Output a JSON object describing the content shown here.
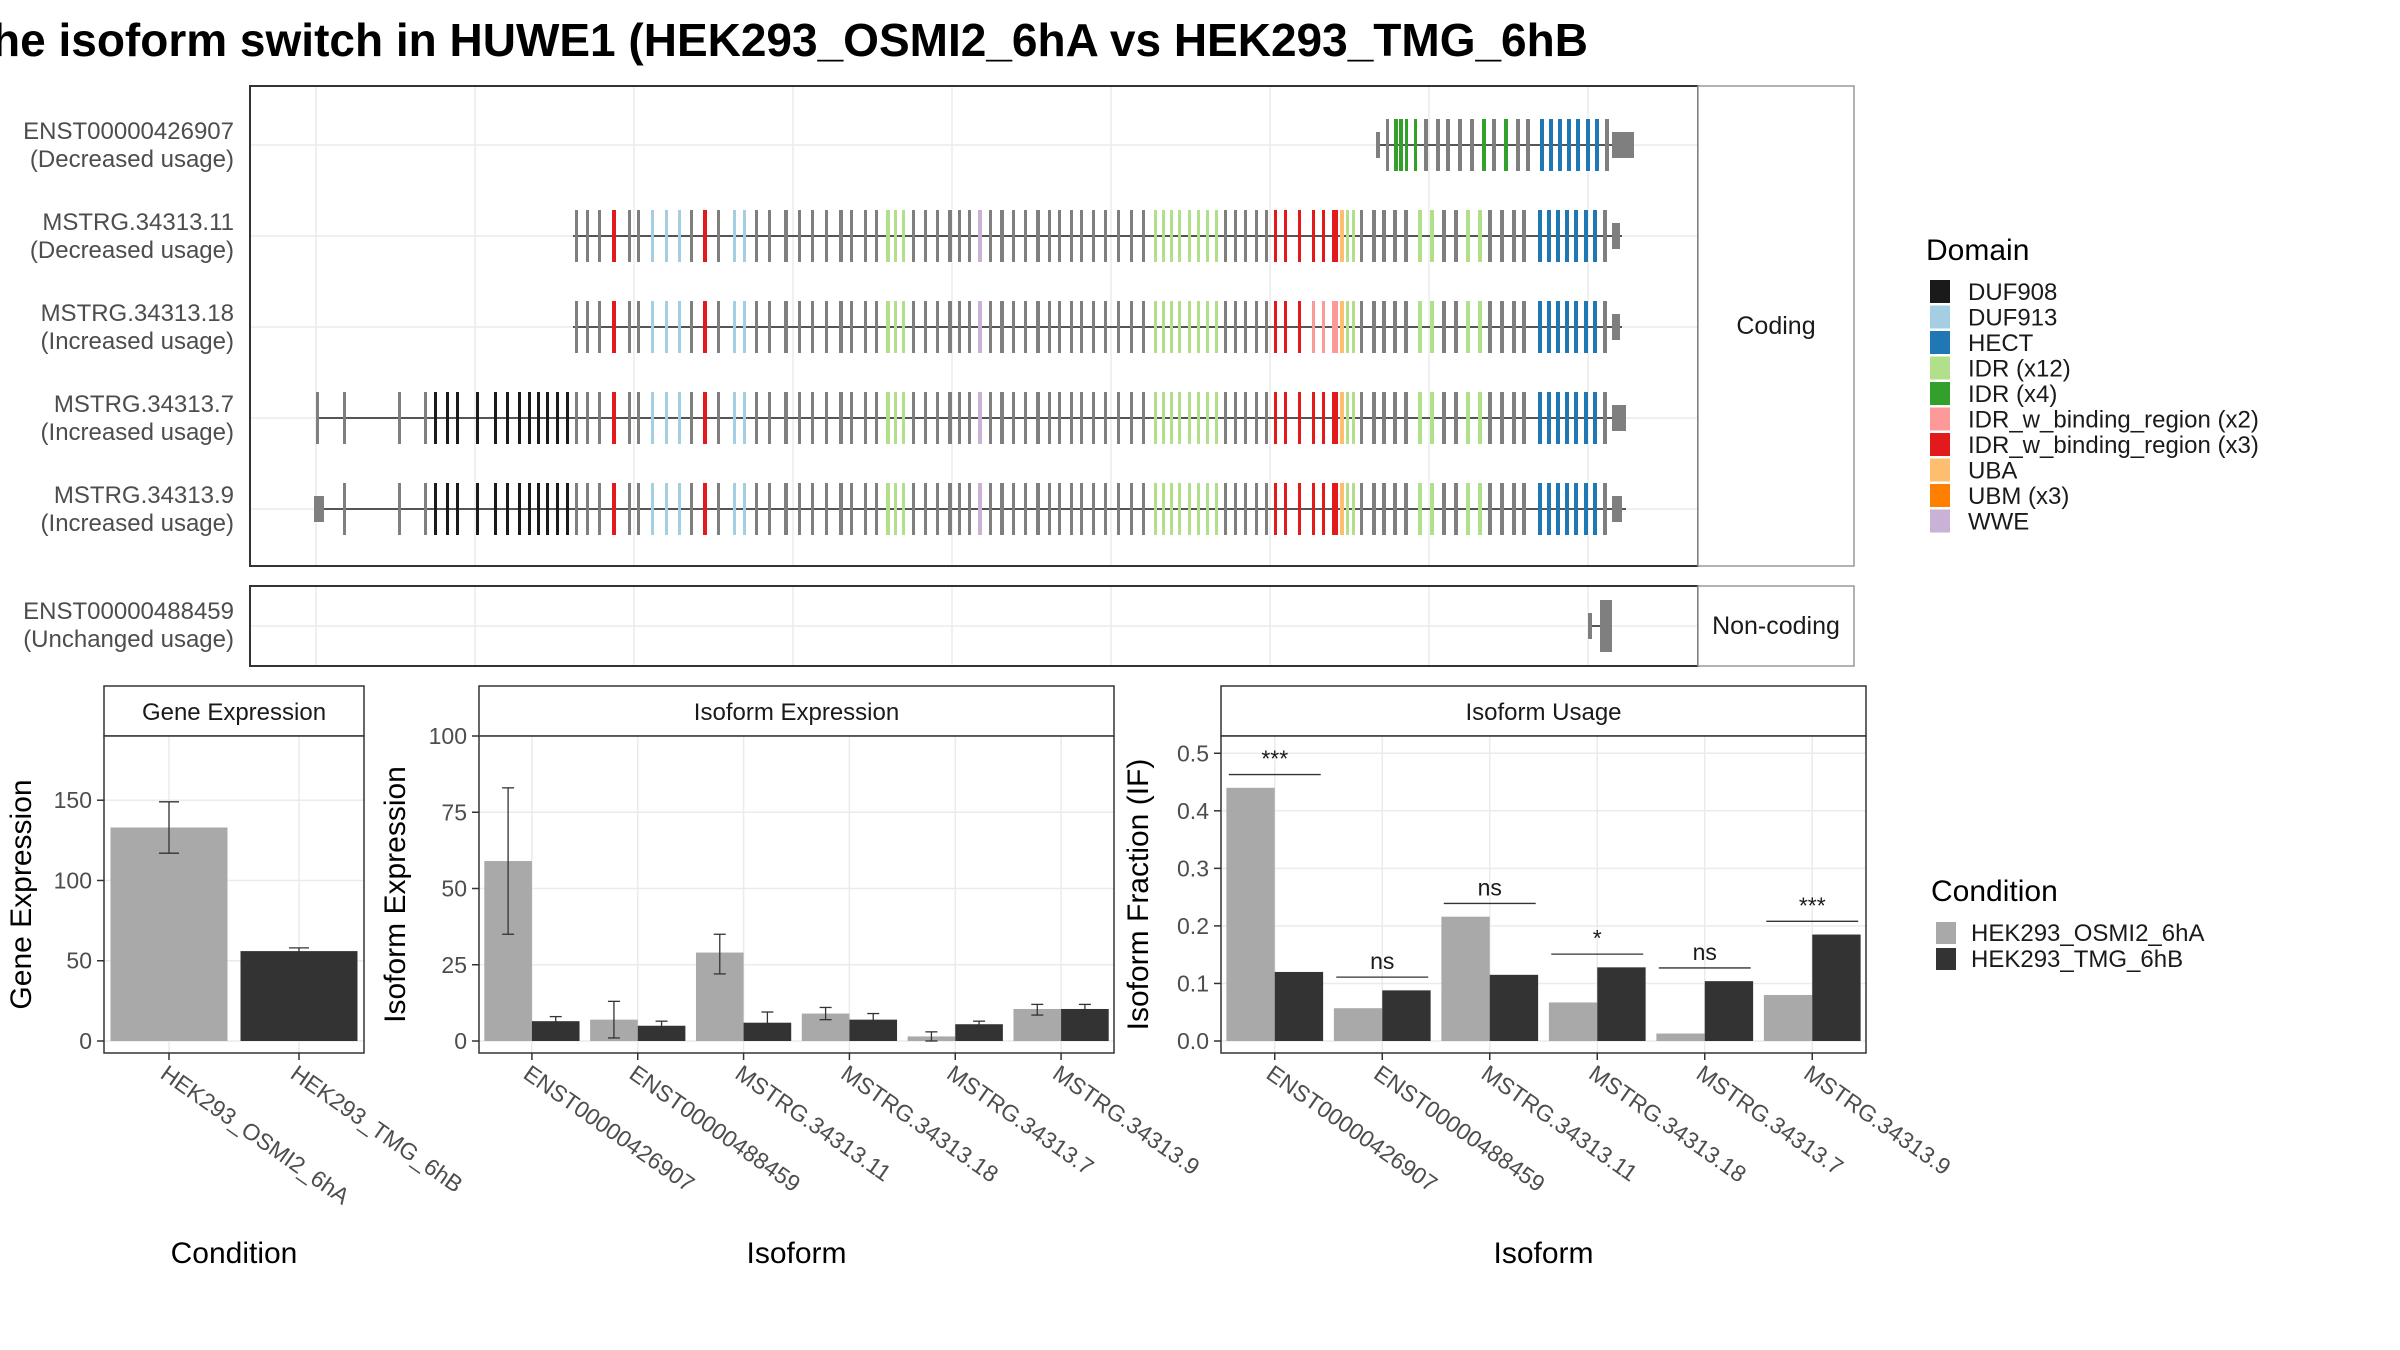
{
  "title": "he isoform switch in HUWE1 (HEK293_OSMI2_6hA vs HEK293_TMG_6hB",
  "colors": {
    "panel_border": "#333333",
    "strip_border": "#999999",
    "grid": "#ebebeb",
    "intron": "#555555",
    "exon": "#7f7f7f",
    "cond_a": "#a9a9a9",
    "cond_b": "#333333"
  },
  "structure": {
    "facets": [
      "Coding",
      "Non-coding"
    ],
    "transcripts": [
      {
        "id": "ENST00000426907",
        "usage": "(Decreased usage)",
        "facet": "Coding"
      },
      {
        "id": "MSTRG.34313.11",
        "usage": "(Decreased usage)",
        "facet": "Coding"
      },
      {
        "id": "MSTRG.34313.18",
        "usage": "(Increased usage)",
        "facet": "Coding"
      },
      {
        "id": "MSTRG.34313.7",
        "usage": "(Increased usage)",
        "facet": "Coding"
      },
      {
        "id": "MSTRG.34313.9",
        "usage": "(Increased usage)",
        "facet": "Coding"
      },
      {
        "id": "ENST00000488459",
        "usage": "(Unchanged usage)",
        "facet": "Non-coding"
      }
    ],
    "domain_legend_title": "Domain",
    "domains": [
      {
        "name": "DUF908",
        "color": "#1a1a1a"
      },
      {
        "name": "DUF913",
        "color": "#a6cee3"
      },
      {
        "name": "HECT",
        "color": "#1f78b4"
      },
      {
        "name": "IDR (x12)",
        "color": "#b2df8a"
      },
      {
        "name": "IDR (x4)",
        "color": "#33a02c"
      },
      {
        "name": "IDR_w_binding_region (x2)",
        "color": "#fb9a99"
      },
      {
        "name": "IDR_w_binding_region (x3)",
        "color": "#e31a1c"
      },
      {
        "name": "UBA",
        "color": "#fdbf6f"
      },
      {
        "name": "UBM (x3)",
        "color": "#ff7f00"
      },
      {
        "name": "WWE",
        "color": "#cab2d6"
      }
    ]
  },
  "condition_legend": {
    "title": "Condition",
    "items": [
      {
        "name": "HEK293_OSMI2_6hA",
        "color": "#a9a9a9"
      },
      {
        "name": "HEK293_TMG_6hB",
        "color": "#333333"
      }
    ]
  },
  "chart_data": [
    {
      "type": "bar",
      "title": "Gene Expression",
      "xlabel": "Condition",
      "ylabel": "Gene Expression",
      "ylim": [
        0,
        190
      ],
      "yticks": [
        0,
        50,
        100,
        150
      ],
      "categories": [
        "HEK293_OSMI2_6hA",
        "HEK293_TMG_6hB"
      ],
      "values": [
        133,
        56
      ],
      "errors": [
        [
          117,
          149
        ],
        [
          54,
          58
        ]
      ],
      "bar_colors": [
        "#a9a9a9",
        "#333333"
      ]
    },
    {
      "type": "bar",
      "title": "Isoform Expression",
      "xlabel": "Isoform",
      "ylabel": "Isoform Expression",
      "ylim": [
        0,
        100
      ],
      "yticks": [
        0,
        25,
        50,
        75,
        100
      ],
      "categories": [
        "ENST00000426907",
        "ENST00000488459",
        "MSTRG.34313.11",
        "MSTRG.34313.18",
        "MSTRG.34313.7",
        "MSTRG.34313.9"
      ],
      "series": [
        {
          "name": "HEK293_OSMI2_6hA",
          "values": [
            59,
            7,
            29,
            9,
            1.5,
            10.5
          ],
          "errors": [
            [
              35,
              83
            ],
            [
              1,
              13
            ],
            [
              22,
              35
            ],
            [
              7,
              11
            ],
            [
              0,
              3
            ],
            [
              8.5,
              12
            ]
          ]
        },
        {
          "name": "HEK293_TMG_6hB",
          "values": [
            6.5,
            5,
            6,
            7,
            5.5,
            10.5
          ],
          "errors": [
            [
              5,
              8
            ],
            [
              3.5,
              6.5
            ],
            [
              3,
              9.5
            ],
            [
              5,
              9
            ],
            [
              4.5,
              6.5
            ],
            [
              8.5,
              12
            ]
          ]
        }
      ]
    },
    {
      "type": "bar",
      "title": "Isoform Usage",
      "xlabel": "Isoform",
      "ylabel": "Isoform Fraction (IF)",
      "ylim": [
        0,
        0.53
      ],
      "yticks": [
        "0.0",
        "0.1",
        "0.2",
        "0.3",
        "0.4",
        "0.5"
      ],
      "categories": [
        "ENST00000426907",
        "ENST00000488459",
        "MSTRG.34313.11",
        "MSTRG.34313.18",
        "MSTRG.34313.7",
        "MSTRG.34313.9"
      ],
      "series": [
        {
          "name": "HEK293_OSMI2_6hA",
          "values": [
            0.44,
            0.057,
            0.216,
            0.067,
            0.013,
            0.08
          ]
        },
        {
          "name": "HEK293_TMG_6hB",
          "values": [
            0.12,
            0.088,
            0.115,
            0.128,
            0.104,
            0.185
          ]
        }
      ],
      "significance": [
        "***",
        "ns",
        "ns",
        "*",
        "ns",
        "***"
      ]
    }
  ]
}
